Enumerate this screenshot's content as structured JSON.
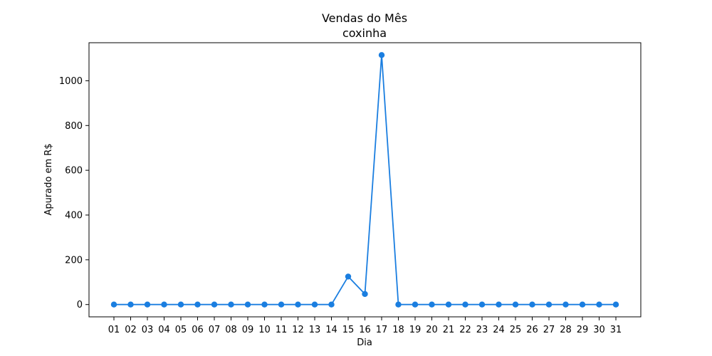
{
  "chart_data": {
    "type": "line",
    "title": "Vendas do Mês",
    "subtitle": "coxinha",
    "xlabel": "Dia",
    "ylabel": "Apurado em R$",
    "x": [
      "01",
      "02",
      "03",
      "04",
      "05",
      "06",
      "07",
      "08",
      "09",
      "10",
      "11",
      "12",
      "13",
      "14",
      "15",
      "16",
      "17",
      "18",
      "19",
      "20",
      "21",
      "22",
      "23",
      "24",
      "25",
      "26",
      "27",
      "28",
      "29",
      "30",
      "31"
    ],
    "series": [
      {
        "values": [
          0,
          0,
          0,
          0,
          0,
          0,
          0,
          0,
          0,
          0,
          0,
          0,
          0,
          0,
          125,
          47,
          1115,
          0,
          0,
          0,
          0,
          0,
          0,
          0,
          0,
          0,
          0,
          0,
          0,
          0,
          0
        ]
      }
    ],
    "y_ticks": [
      0,
      200,
      400,
      600,
      800,
      1000
    ],
    "ylim": [
      -55,
      1170
    ],
    "grid": false,
    "line_color": "#1a7ee0",
    "marker": "circle"
  }
}
